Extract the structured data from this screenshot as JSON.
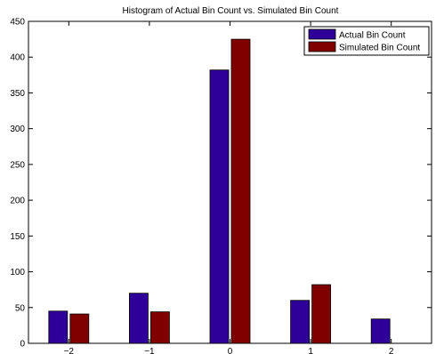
{
  "chart_data": {
    "type": "bar",
    "title": "Histogram of Actual Bin Count vs. Simulated Bin Count",
    "xlabel": "",
    "ylabel": "",
    "categories": [
      "−2",
      "−1",
      "0",
      "1",
      "2"
    ],
    "x": [
      -2,
      -1,
      0,
      1,
      2
    ],
    "series": [
      {
        "name": "Actual Bin Count",
        "color": "#2e0099",
        "values": [
          45,
          70,
          382,
          60,
          34
        ]
      },
      {
        "name": "Simulated Bin Count",
        "color": "#800000",
        "values": [
          41,
          44,
          425,
          82,
          0
        ]
      }
    ],
    "ylim": [
      0,
      450
    ],
    "yticks": [
      0,
      50,
      100,
      150,
      200,
      250,
      300,
      350,
      400,
      450
    ],
    "grid": false,
    "legend_position": "top-right"
  }
}
